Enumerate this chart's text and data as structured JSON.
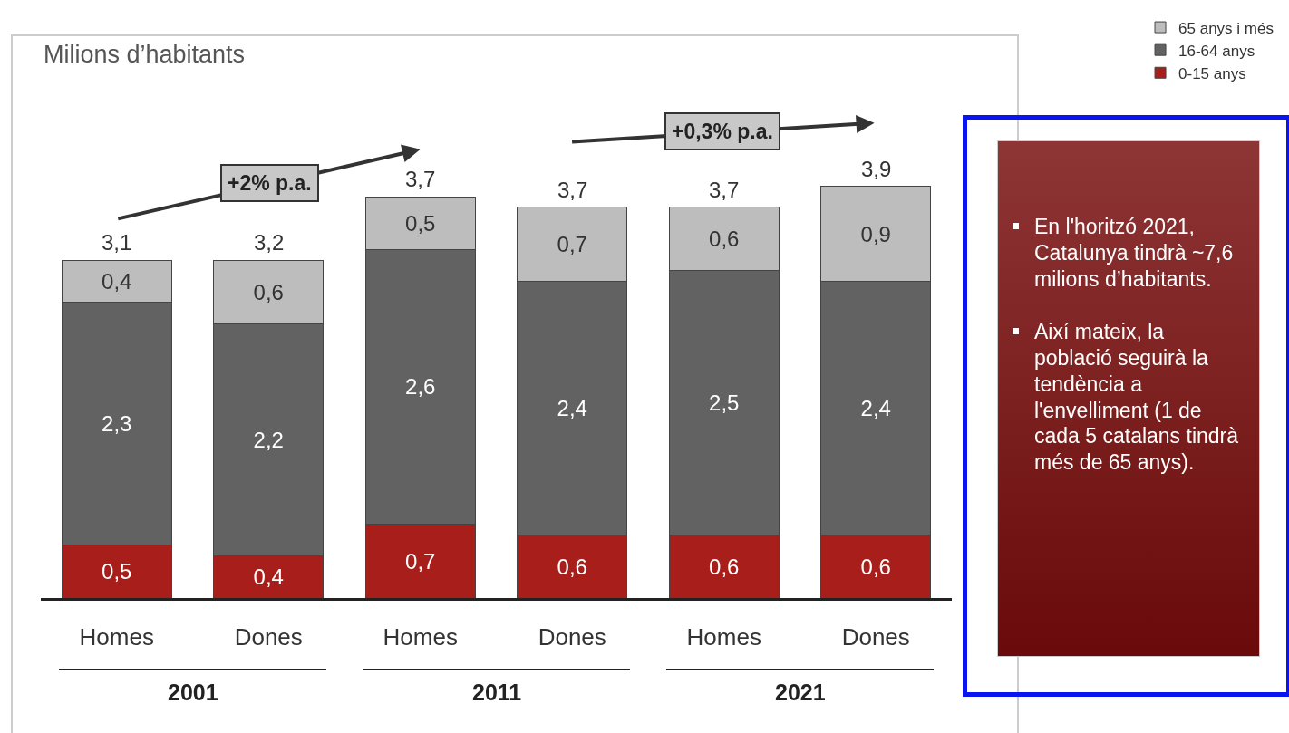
{
  "chart_data": {
    "type": "bar",
    "title": "Milions d’habitants",
    "stacked": true,
    "legend": "top right",
    "tick_labels": "x",
    "grid": false,
    "categories": [
      "Homes",
      "Dones",
      "Homes",
      "Dones",
      "Homes",
      "Dones"
    ],
    "series": [
      {
        "name": "0-15 anys",
        "color": "#a81e1a",
        "values": [
          0.5,
          0.4,
          0.7,
          0.6,
          0.6,
          0.6
        ],
        "value_labels": [
          "0,5",
          "0,4",
          "0,7",
          "0,6",
          "0,6",
          "0,6"
        ]
      },
      {
        "name": "16-64 anys",
        "color": "#626262",
        "values": [
          2.3,
          2.2,
          2.6,
          2.4,
          2.5,
          2.4
        ],
        "value_labels": [
          "2,3",
          "2,2",
          "2,6",
          "2,4",
          "2,5",
          "2,4"
        ]
      },
      {
        "name": "65 anys i més",
        "color": "#bdbdbd",
        "values": [
          0.4,
          0.6,
          0.5,
          0.7,
          0.6,
          0.9
        ],
        "value_labels": [
          "0,4",
          "0,6",
          "0,5",
          "0,7",
          "0,6",
          "0,9"
        ]
      }
    ],
    "totals": [
      "3,1",
      "3,2",
      "3,7",
      "3,7",
      "3,7",
      "3,9"
    ],
    "annotations": [
      "2001",
      "2011",
      "2021",
      "+2% p.a.",
      "+0,3% p.a.",
      "En l'horitzó 2021, Catalunya tindrà ~7,6 milions d’habitants.",
      "Així mateix, la població seguirà la tendència a l'envelliment (1 de cada 5 catalans tindrà més de 65 anys)."
    ]
  }
}
